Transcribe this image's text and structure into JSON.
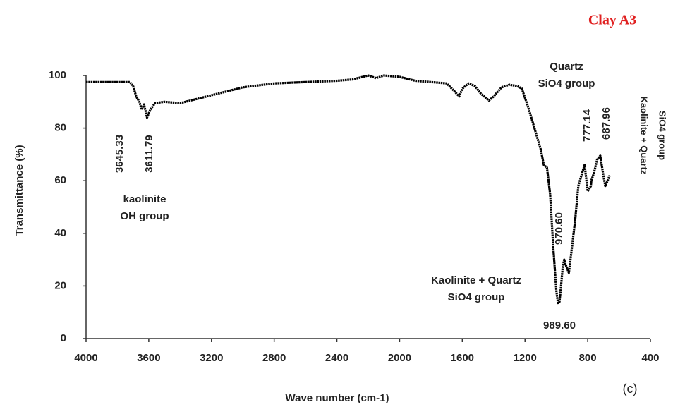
{
  "chart_data": {
    "type": "line",
    "title": "Clay A3",
    "title_color": "#e02020",
    "x_label": "Wave number (cm-1)",
    "y_label": "Transmittance (%)",
    "panel_label": "(c)",
    "xlim": [
      4000,
      400
    ],
    "ylim": [
      0,
      100
    ],
    "xticks": [
      4000,
      3600,
      3200,
      2800,
      2400,
      2000,
      1600,
      1200,
      800,
      400
    ],
    "yticks": [
      0,
      20,
      40,
      60,
      80,
      100
    ],
    "grid": false,
    "series": [
      {
        "name": "Clay A3",
        "color": "#000000",
        "x": [
          4000,
          3800,
          3720,
          3700,
          3680,
          3660,
          3645,
          3630,
          3611,
          3590,
          3560,
          3500,
          3400,
          3300,
          3200,
          3000,
          2800,
          2600,
          2400,
          2300,
          2200,
          2150,
          2100,
          2000,
          1900,
          1800,
          1700,
          1650,
          1620,
          1600,
          1560,
          1520,
          1480,
          1430,
          1400,
          1350,
          1300,
          1250,
          1220,
          1180,
          1140,
          1100,
          1080,
          1060,
          1040,
          1020,
          1000,
          990,
          980,
          970,
          960,
          950,
          940,
          920,
          900,
          880,
          860,
          840,
          820,
          800,
          780,
          777,
          760,
          740,
          720,
          700,
          688,
          680,
          660
        ],
        "values": [
          97.5,
          97.5,
          97.5,
          96,
          92,
          90,
          87,
          89,
          84,
          87,
          89.5,
          90,
          89.5,
          91,
          92.5,
          95.5,
          97,
          97.5,
          98,
          98.5,
          100,
          99,
          100,
          99.5,
          98,
          97.5,
          97,
          94,
          92,
          95,
          97,
          96,
          93,
          90.5,
          92,
          95.5,
          96.5,
          96,
          95,
          88,
          80,
          72,
          66,
          65,
          55,
          35,
          18,
          13.5,
          14,
          20,
          27,
          30,
          28,
          25,
          35,
          45,
          58,
          62,
          66,
          56,
          58,
          60,
          63,
          68,
          69.5,
          62,
          58,
          59,
          62
        ]
      }
    ],
    "annotations": [
      {
        "text": [
          "3645.33"
        ]
      },
      {
        "text": [
          "3611.79"
        ]
      },
      {
        "text": [
          "kaolinite",
          "OH group"
        ]
      },
      {
        "text": [
          "Quartz",
          "SiO4 group"
        ]
      },
      {
        "text": [
          "777.14"
        ]
      },
      {
        "text": [
          "687.96"
        ]
      },
      {
        "text": [
          "Kaolinite + Quartz",
          "SiO4 group"
        ]
      },
      {
        "text": [
          "970.60"
        ]
      },
      {
        "text": [
          "Kaolinite + Quartz",
          "SiO4 group"
        ]
      },
      {
        "text": [
          "989.60"
        ]
      }
    ]
  }
}
